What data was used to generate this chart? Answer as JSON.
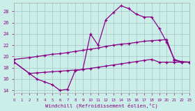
{
  "background_color": "#cceee8",
  "grid_color": "#aacccc",
  "line_color": "#880088",
  "marker": "+",
  "xlabel": "Windchill (Refroidissement éolien,°C)",
  "xlim": [
    0,
    23
  ],
  "ylim": [
    13.5,
    29.5
  ],
  "yticks": [
    14,
    16,
    18,
    20,
    22,
    24,
    26,
    28
  ],
  "xticks": [
    0,
    1,
    2,
    3,
    4,
    5,
    6,
    7,
    8,
    9,
    10,
    11,
    12,
    13,
    14,
    15,
    16,
    17,
    18,
    19,
    20,
    21,
    22,
    23
  ],
  "series": [
    {
      "x": [
        0,
        2,
        3,
        4,
        5,
        6,
        7,
        8,
        9,
        10,
        11,
        12,
        13,
        14,
        15,
        16,
        17,
        18,
        19,
        20,
        21,
        22,
        23
      ],
      "y": [
        19.0,
        17.0,
        16.0,
        15.5,
        15.0,
        14.0,
        14.2,
        17.5,
        17.7,
        24.0,
        22.0,
        26.5,
        27.8,
        29.0,
        28.5,
        27.5,
        27.0,
        27.0,
        25.0,
        22.5,
        19.5,
        19.0,
        19.0
      ]
    },
    {
      "x": [
        0,
        2,
        3,
        4,
        5,
        6,
        7,
        8,
        9,
        10,
        11,
        12,
        13,
        14,
        15,
        16,
        17,
        18,
        19,
        20,
        21,
        22,
        23
      ],
      "y": [
        19.5,
        19.8,
        20.0,
        20.2,
        20.4,
        20.5,
        20.7,
        20.9,
        21.1,
        21.3,
        21.5,
        21.8,
        22.0,
        22.2,
        22.3,
        22.5,
        22.7,
        22.8,
        22.9,
        23.0,
        19.3,
        19.1,
        19.0
      ]
    },
    {
      "x": [
        0,
        2,
        3,
        4,
        5,
        6,
        7,
        8,
        9,
        10,
        11,
        12,
        13,
        14,
        15,
        16,
        17,
        18,
        19,
        20,
        21,
        22,
        23
      ],
      "y": [
        19.0,
        17.0,
        17.1,
        17.2,
        17.3,
        17.4,
        17.5,
        17.6,
        17.7,
        17.9,
        18.1,
        18.3,
        18.5,
        18.7,
        18.9,
        19.1,
        19.3,
        19.5,
        19.0,
        19.0,
        19.0,
        19.0,
        19.0
      ]
    }
  ]
}
